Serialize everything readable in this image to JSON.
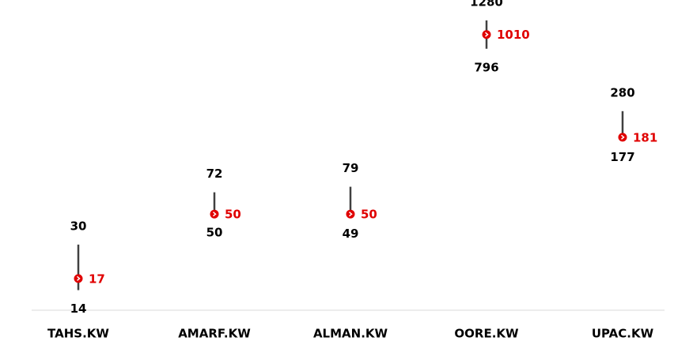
{
  "chart_data": {
    "type": "highlow",
    "categories": [
      "TAHS.KW",
      "AMARF.KW",
      "ALMAN.KW",
      "OORE.KW",
      "UPAC.KW"
    ],
    "high": [
      30,
      72,
      79,
      1280,
      280
    ],
    "low": [
      14,
      50,
      49,
      796,
      177
    ],
    "current": [
      17,
      50,
      50,
      1010,
      181
    ],
    "ylim": [
      10,
      1800
    ],
    "log_scale": true,
    "line_color": "#404040",
    "marker_color": "#e00000",
    "label_color": "#000000"
  }
}
